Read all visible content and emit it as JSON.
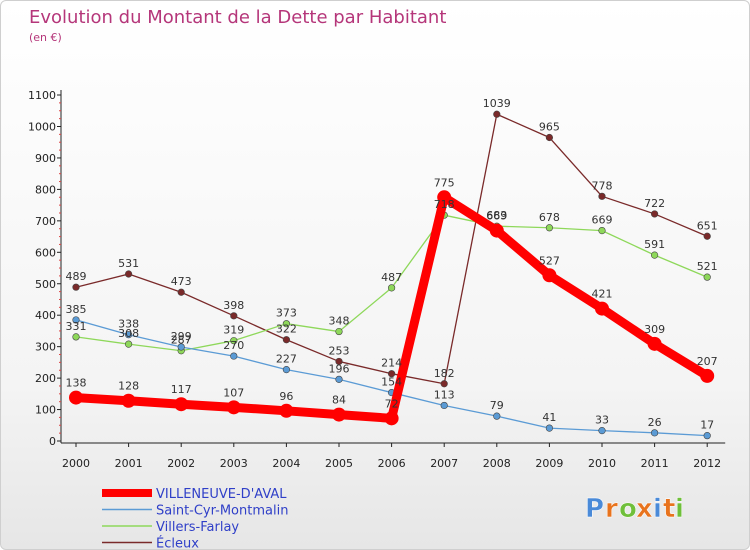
{
  "chart_data": {
    "type": "line",
    "title": "Evolution du Montant de la Dette par Habitant",
    "subtitle": "(en €)",
    "x": [
      "2000",
      "2001",
      "2002",
      "2003",
      "2004",
      "2005",
      "2006",
      "2007",
      "2008",
      "2009",
      "2010",
      "2011",
      "2012"
    ],
    "yticks": [
      0,
      100,
      200,
      300,
      400,
      500,
      600,
      700,
      800,
      900,
      1000,
      1100
    ],
    "ylim": [
      0,
      1100
    ],
    "grid": false,
    "legend_position": "bottom-left",
    "series": [
      {
        "name": "Écleux",
        "color": "#7a2a2a",
        "values": [
          489,
          531,
          473,
          398,
          322,
          253,
          214,
          182,
          1039,
          965,
          778,
          722,
          651
        ]
      },
      {
        "name": "Villers-Farlay",
        "color": "#8ed85a",
        "values": [
          331,
          308,
          287,
          319,
          373,
          348,
          487,
          718,
          683,
          678,
          669,
          591,
          521
        ]
      },
      {
        "name": "Saint-Cyr-Montmalin",
        "color": "#5b9bd5",
        "values": [
          385,
          338,
          299,
          270,
          227,
          196,
          154,
          113,
          79,
          41,
          33,
          26,
          17
        ]
      },
      {
        "name": "VILLENEUVE-D'AVAL",
        "color": "#ff0000",
        "values": [
          138,
          128,
          117,
          107,
          96,
          84,
          72,
          775,
          669,
          527,
          421,
          309,
          207
        ]
      }
    ]
  },
  "logo": {
    "letters": [
      "P",
      "r",
      "o",
      "x",
      "i",
      "t",
      "i"
    ],
    "colors": [
      "#4a8ad8",
      "#e8731d",
      "#6fbf3a",
      "#e8731d",
      "#4a8ad8",
      "#e8731d",
      "#6fbf3a"
    ]
  }
}
